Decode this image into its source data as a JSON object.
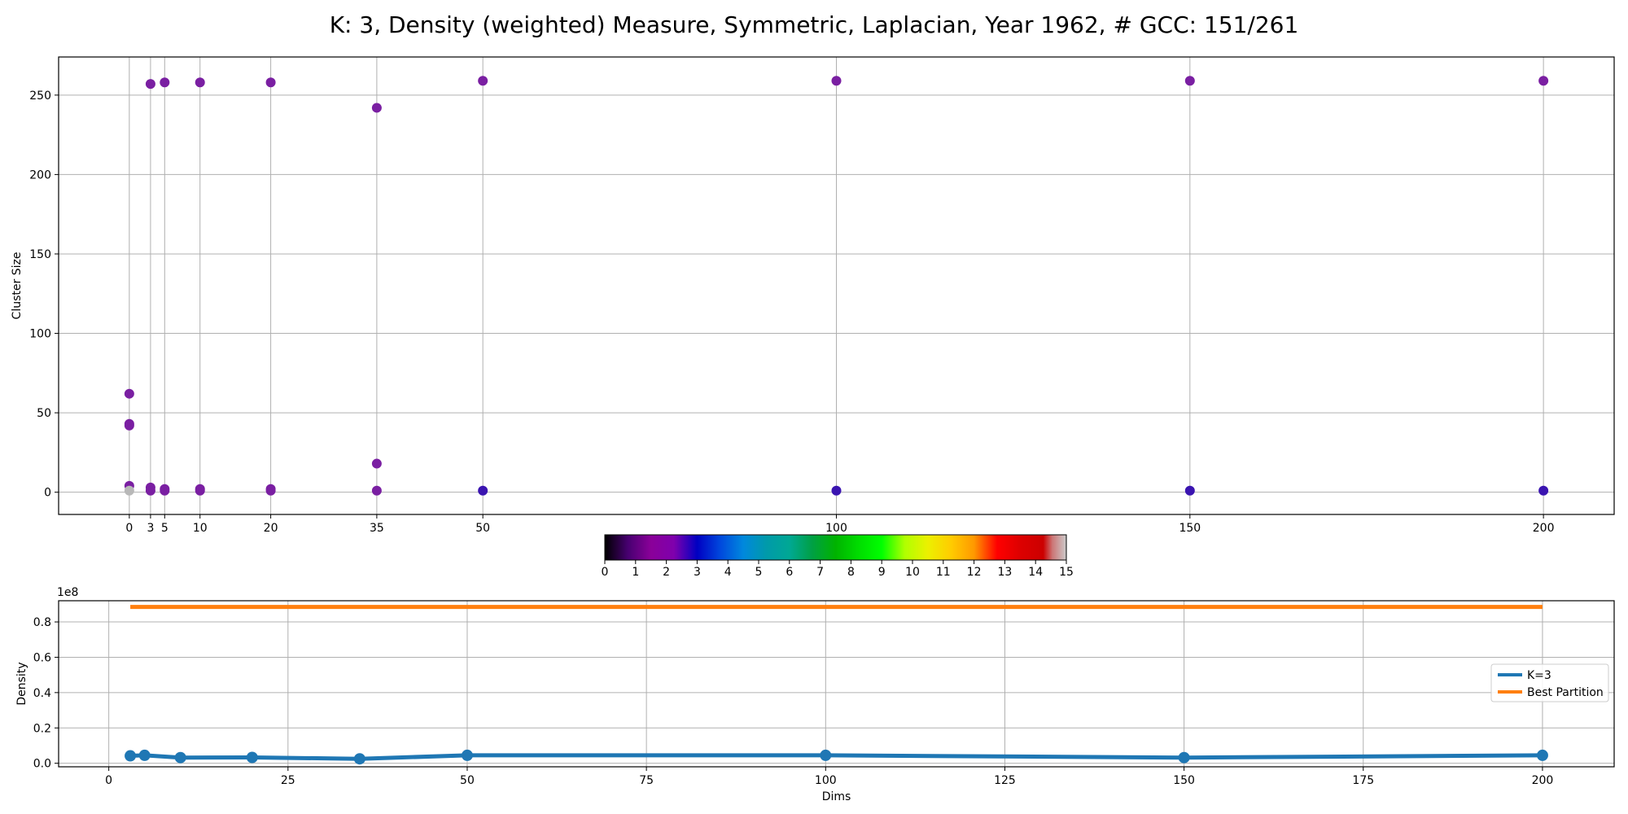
{
  "figure": {
    "title": "K: 3, Density (weighted) Measure, Symmetric, Laplacian, Year 1962, # GCC: 151/261"
  },
  "chart_data": [
    {
      "type": "scatter",
      "ylabel": "Cluster Size",
      "xlabel": "",
      "xlim": [
        -10,
        210
      ],
      "ylim": [
        -14,
        274
      ],
      "xticks": [
        0,
        3,
        5,
        10,
        20,
        35,
        50,
        100,
        150,
        200
      ],
      "yticks": [
        0,
        50,
        100,
        150,
        200,
        250
      ],
      "grid": true,
      "point_colors": {
        "purple": "#7a1fa2",
        "indigo": "#3a14b0",
        "grey": "#b8b8b8"
      },
      "points": [
        {
          "x": 0,
          "y": 62,
          "c": "purple"
        },
        {
          "x": 0,
          "y": 43,
          "c": "purple"
        },
        {
          "x": 0,
          "y": 42,
          "c": "purple"
        },
        {
          "x": 0,
          "y": 4,
          "c": "purple"
        },
        {
          "x": 0,
          "y": 1,
          "c": "grey"
        },
        {
          "x": 3,
          "y": 257,
          "c": "purple"
        },
        {
          "x": 3,
          "y": 3,
          "c": "purple"
        },
        {
          "x": 3,
          "y": 1,
          "c": "purple"
        },
        {
          "x": 5,
          "y": 258,
          "c": "purple"
        },
        {
          "x": 5,
          "y": 2,
          "c": "purple"
        },
        {
          "x": 5,
          "y": 1,
          "c": "purple"
        },
        {
          "x": 10,
          "y": 258,
          "c": "purple"
        },
        {
          "x": 10,
          "y": 2,
          "c": "purple"
        },
        {
          "x": 10,
          "y": 1,
          "c": "purple"
        },
        {
          "x": 20,
          "y": 258,
          "c": "purple"
        },
        {
          "x": 20,
          "y": 2,
          "c": "purple"
        },
        {
          "x": 20,
          "y": 1,
          "c": "purple"
        },
        {
          "x": 35,
          "y": 242,
          "c": "purple"
        },
        {
          "x": 35,
          "y": 18,
          "c": "purple"
        },
        {
          "x": 35,
          "y": 1,
          "c": "purple"
        },
        {
          "x": 50,
          "y": 259,
          "c": "purple"
        },
        {
          "x": 50,
          "y": 1,
          "c": "indigo"
        },
        {
          "x": 100,
          "y": 259,
          "c": "purple"
        },
        {
          "x": 100,
          "y": 1,
          "c": "indigo"
        },
        {
          "x": 150,
          "y": 259,
          "c": "purple"
        },
        {
          "x": 150,
          "y": 1,
          "c": "indigo"
        },
        {
          "x": 200,
          "y": 259,
          "c": "purple"
        },
        {
          "x": 200,
          "y": 1,
          "c": "indigo"
        }
      ]
    },
    {
      "type": "colorbar",
      "cmap": "nipy_spectral",
      "range": [
        0,
        15
      ],
      "ticks": [
        0,
        1,
        2,
        3,
        4,
        5,
        6,
        7,
        8,
        9,
        10,
        11,
        12,
        13,
        14,
        15
      ]
    },
    {
      "type": "line",
      "xlabel": "Dims",
      "ylabel": "Density",
      "offset_text": "1e8",
      "xlim": [
        -7,
        210
      ],
      "ylim": [
        -0.02,
        0.92
      ],
      "xticks": [
        0,
        25,
        50,
        75,
        100,
        125,
        150,
        175,
        200
      ],
      "yticks": [
        0.0,
        0.2,
        0.4,
        0.6,
        0.8
      ],
      "ytick_labels": [
        "0.0",
        "0.2",
        "0.4",
        "0.6",
        "0.8"
      ],
      "grid": true,
      "legend": "center-right",
      "series": [
        {
          "name": "K=3",
          "color": "#1f77b4",
          "markers": true,
          "x": [
            3,
            5,
            10,
            20,
            35,
            50,
            100,
            150,
            200
          ],
          "y": [
            0.042,
            0.045,
            0.032,
            0.033,
            0.025,
            0.045,
            0.045,
            0.032,
            0.045
          ]
        },
        {
          "name": "Best Partition",
          "color": "#ff7f0e",
          "markers": false,
          "x": [
            3,
            200
          ],
          "y": [
            0.885,
            0.885
          ]
        }
      ]
    }
  ]
}
